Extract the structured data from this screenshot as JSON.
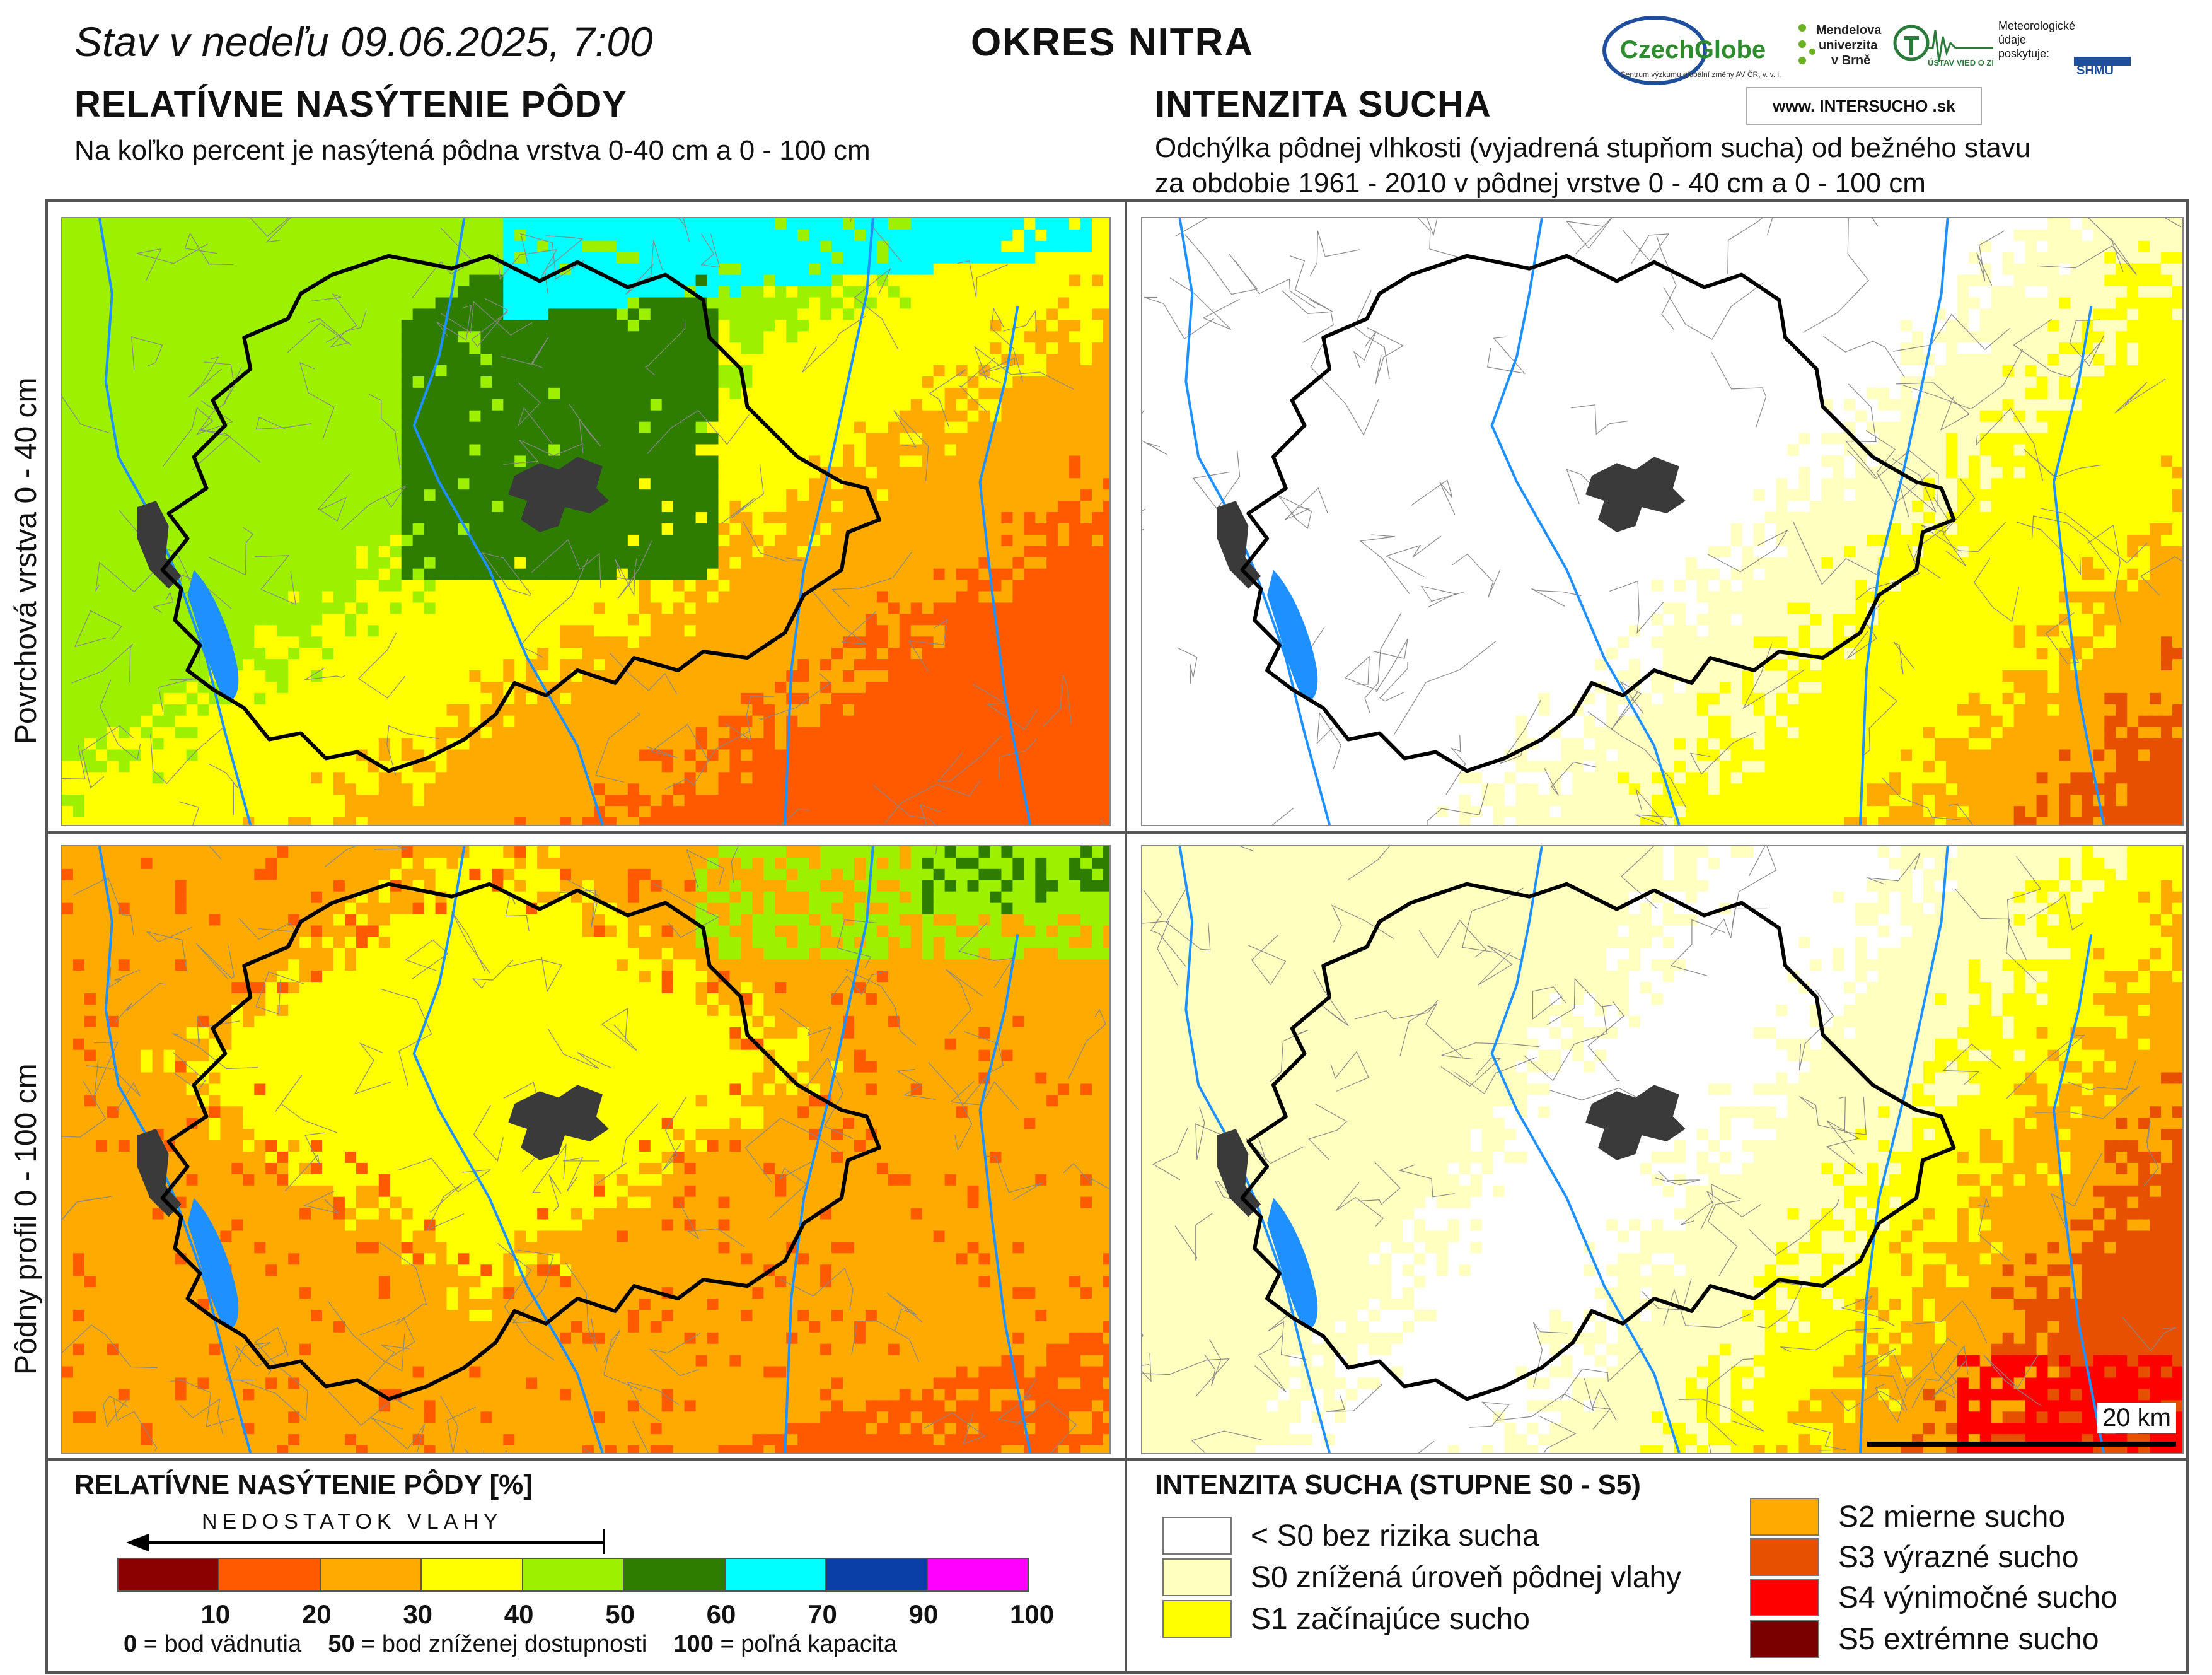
{
  "header": {
    "date_line": "Stav v nedeľu 09.06.2025, 7:00",
    "district": "OKRES NITRA"
  },
  "logos": {
    "czechglobe": "CzechGlobe",
    "czechglobe_sub": "Centrum výzkumu globální změny AV ČR, v. v. i.",
    "mendel": "Mendelova univerzita v Brně",
    "uvz": "ÚSTAV VIED O ZEMI",
    "meteo": "Meteorologické údaje poskytuje:",
    "shmu": "SHMÚ",
    "intersucho": "www. INTERSUCHO .sk"
  },
  "left_section": {
    "title": "RELATÍVNE NASÝTENIE PÔDY",
    "subtitle": "Na koľko percent je nasýtená pôdna vrstva 0-40 cm a 0 - 100 cm"
  },
  "right_section": {
    "title": "INTENZITA SUCHA",
    "subtitle_line1": "Odchýlka pôdnej vlhkosti (vyjadrená stupňom sucha) od bežného stavu",
    "subtitle_line2": "za obdobie 1961 - 2010 v pôdnej vrstve 0 - 40 cm a 0 - 100 cm"
  },
  "rows": {
    "top_label": "Povrchová vrstva 0 - 40 cm",
    "bottom_label": "Pôdny profil 0 - 100 cm"
  },
  "scale": {
    "label": "20 km"
  },
  "saturation_legend": {
    "title": "RELATÍVNE NASÝTENIE PÔDY [%]",
    "arrow_label": "NEDOSTATOK VLAHY",
    "bins": [
      {
        "from": 0,
        "to": 10,
        "color": "#8b0000"
      },
      {
        "from": 10,
        "to": 20,
        "color": "#ff5a00"
      },
      {
        "from": 20,
        "to": 30,
        "color": "#ffaa00"
      },
      {
        "from": 30,
        "to": 40,
        "color": "#ffff00"
      },
      {
        "from": 40,
        "to": 50,
        "color": "#9cf000"
      },
      {
        "from": 50,
        "to": 60,
        "color": "#2e7d00"
      },
      {
        "from": 60,
        "to": 70,
        "color": "#00ffff"
      },
      {
        "from": 70,
        "to": 90,
        "color": "#0a3fa8"
      },
      {
        "from": 90,
        "to": 100,
        "color": "#ff00ff"
      }
    ],
    "ticks": [
      "10",
      "20",
      "30",
      "40",
      "50",
      "60",
      "70",
      "90",
      "100"
    ],
    "note": {
      "v0": "0",
      "t0": " = bod vädnutia",
      "v50": "50",
      "t50": " = bod zníženej dostupnosti",
      "v100": "100",
      "t100": " = poľná kapacita"
    }
  },
  "drought_legend": {
    "title": "INTENZITA SUCHA (STUPNE S0 - S5)",
    "classes": [
      {
        "label": "< S0 bez rizika sucha",
        "color": "#ffffff"
      },
      {
        "label": "S0 znížená úroveň pôdnej vlahy",
        "color": "#ffffc0"
      },
      {
        "label": "S1 začínajúce sucho",
        "color": "#ffff00"
      },
      {
        "label": "S2 mierne sucho",
        "color": "#ffaa00"
      },
      {
        "label": "S3 výrazné sucho",
        "color": "#e65000"
      },
      {
        "label": "S4 výnimočné sucho",
        "color": "#ff0000"
      },
      {
        "label": "S5 extrémne sucho",
        "color": "#7a0000"
      }
    ]
  },
  "maps": {
    "sat_top": [
      {
        "cls": "#9cf000"
      },
      {
        "cls": "#2e7d00"
      },
      {
        "cls": "#00ffff"
      },
      {
        "cls": "#ffff00"
      },
      {
        "cls": "#ffaa00"
      },
      {
        "cls": "#ff5a00"
      }
    ],
    "colors": {
      "city": "#3a3a3a",
      "water": "#1e90ff",
      "border": "#000000",
      "muni": "#888888"
    }
  }
}
